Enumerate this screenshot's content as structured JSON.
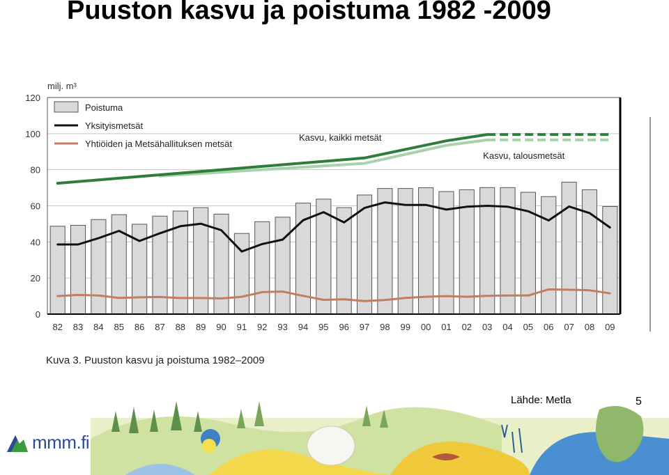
{
  "slide": {
    "title": "Puuston kasvu ja poistuma 1982 -2009",
    "caption": "Kuva 3. Puuston kasvu ja poistuma 1982–2009",
    "source": "Lähde: Metla",
    "page_number": "5",
    "logo_text": "mmm.fi"
  },
  "chart_data": {
    "type": "bar",
    "ylabel": "milj. m³",
    "ylim": [
      0,
      120
    ],
    "yticks": [
      0,
      20,
      40,
      60,
      80,
      100,
      120
    ],
    "categories": [
      "82",
      "83",
      "84",
      "85",
      "86",
      "87",
      "88",
      "89",
      "90",
      "91",
      "92",
      "93",
      "94",
      "95",
      "96",
      "97",
      "98",
      "99",
      "00",
      "01",
      "02",
      "03",
      "04",
      "05",
      "06",
      "07",
      "08",
      "09"
    ],
    "legend_position": "top-left",
    "colors": {
      "bar_fill": "#d9d9d9",
      "bar_stroke": "#555555",
      "private": "#111111",
      "company": "#c27d5e",
      "growth_all": "#2f7d3a",
      "growth_commercial": "#a9d2ac"
    },
    "series": [
      {
        "name": "Poistuma",
        "kind": "bar",
        "values": [
          48.7,
          49.2,
          52.4,
          55.1,
          49.8,
          54.3,
          57.1,
          59.0,
          55.4,
          44.7,
          51.2,
          53.7,
          61.5,
          63.7,
          59.0,
          66.0,
          69.6,
          69.6,
          70.0,
          67.9,
          68.9,
          70.1,
          70.1,
          67.5,
          65.1,
          73.1,
          68.9,
          59.6
        ]
      },
      {
        "name": "Yksityismetsät",
        "kind": "line",
        "values": [
          38.6,
          38.6,
          42.1,
          46.1,
          40.5,
          44.8,
          48.7,
          50.1,
          46.5,
          34.7,
          38.8,
          41.3,
          52.0,
          56.5,
          50.8,
          58.8,
          61.9,
          60.5,
          60.5,
          57.9,
          59.5,
          60.0,
          59.5,
          57.0,
          51.9,
          59.6,
          56.0,
          48.0
        ]
      },
      {
        "name": "Yhtiöiden ja Metsähallituksen metsät",
        "kind": "line",
        "values": [
          10.0,
          10.6,
          10.3,
          9.0,
          9.3,
          9.5,
          8.9,
          8.9,
          8.7,
          9.6,
          12.2,
          12.5,
          10.1,
          7.9,
          8.2,
          7.2,
          7.8,
          9.0,
          9.6,
          10.0,
          9.6,
          10.1,
          10.3,
          10.3,
          13.7,
          13.5,
          13.2,
          11.5
        ]
      },
      {
        "name": "Kasvu, kaikki metsät",
        "kind": "line",
        "values": [
          72.5,
          null,
          null,
          null,
          null,
          null,
          null,
          null,
          null,
          null,
          null,
          null,
          null,
          null,
          null,
          86.5,
          null,
          null,
          null,
          96.0,
          null,
          99.5,
          99.5,
          99.5,
          99.5,
          99.5,
          99.5,
          99.5
        ],
        "dashed_from": "03"
      },
      {
        "name": "Kasvu, talousmetsät",
        "kind": "line",
        "values": [
          null,
          null,
          null,
          null,
          null,
          76.5,
          null,
          null,
          null,
          null,
          null,
          null,
          null,
          null,
          null,
          83.5,
          null,
          null,
          null,
          93.5,
          null,
          96.5,
          96.5,
          96.5,
          96.5,
          96.5,
          96.5,
          96.5
        ],
        "dashed_from": "03"
      }
    ],
    "annotations": [
      {
        "text": "Kasvu, kaikki metsät",
        "at_category": "94",
        "at_value": 96
      },
      {
        "text": "Kasvu, talousmetsät",
        "at_category": "03",
        "at_value": 86
      }
    ]
  }
}
